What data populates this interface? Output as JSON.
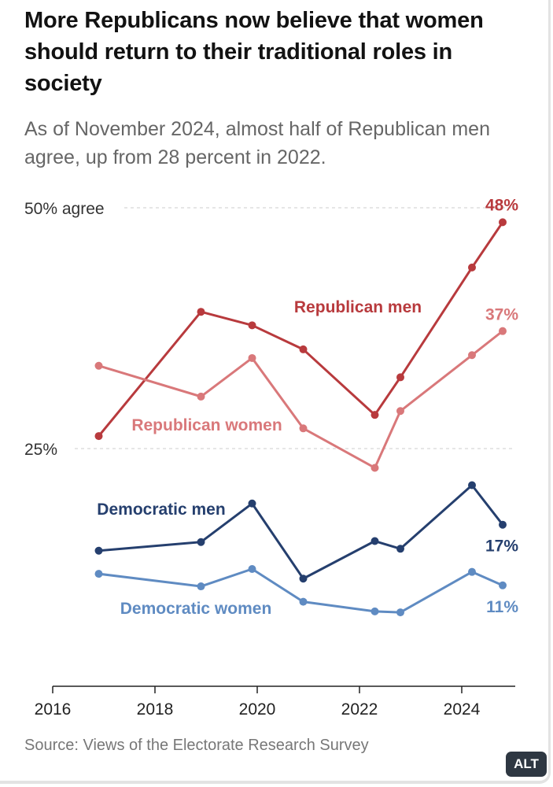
{
  "title": "More Republicans now believe that women should return to their traditional roles in society",
  "subtitle": "As of November 2024, almost half of Republican men agree, up from 28 percent in 2022.",
  "source": "Source: Views of the Electorate Research Survey",
  "alt_badge": "ALT",
  "chart_data": {
    "type": "line",
    "y_gridline_labels": [
      {
        "value": 50,
        "label": "50% agree"
      },
      {
        "value": 25,
        "label": "25%"
      }
    ],
    "x_ticks": [
      {
        "value": 2016,
        "label": "2016"
      },
      {
        "value": 2018,
        "label": "2018"
      },
      {
        "value": 2020,
        "label": "2020"
      },
      {
        "value": 2022,
        "label": "2022"
      },
      {
        "value": 2024,
        "label": "2024"
      }
    ],
    "xlim": [
      2016,
      2025.3
    ],
    "ylim": [
      0,
      50
    ],
    "grid": true,
    "series": [
      {
        "name": "Republican men",
        "color": "#b83a3d",
        "end_label": "48%",
        "points": [
          {
            "x": 2016.9,
            "y": 26.3
          },
          {
            "x": 2018.9,
            "y": 39.2
          },
          {
            "x": 2019.9,
            "y": 37.8
          },
          {
            "x": 2020.9,
            "y": 35.3
          },
          {
            "x": 2022.3,
            "y": 28.5
          },
          {
            "x": 2022.8,
            "y": 32.4
          },
          {
            "x": 2024.2,
            "y": 43.8
          },
          {
            "x": 2024.8,
            "y": 48.5
          }
        ]
      },
      {
        "name": "Republican women",
        "color": "#d9787a",
        "end_label": "37%",
        "points": [
          {
            "x": 2016.9,
            "y": 33.6
          },
          {
            "x": 2018.9,
            "y": 30.4
          },
          {
            "x": 2019.9,
            "y": 34.4
          },
          {
            "x": 2020.9,
            "y": 27.1
          },
          {
            "x": 2022.3,
            "y": 23.0
          },
          {
            "x": 2022.8,
            "y": 28.9
          },
          {
            "x": 2024.2,
            "y": 34.7
          },
          {
            "x": 2024.8,
            "y": 37.2
          }
        ]
      },
      {
        "name": "Democratic men",
        "color": "#253f6e",
        "end_label": "17%",
        "points": [
          {
            "x": 2016.9,
            "y": 14.4
          },
          {
            "x": 2018.9,
            "y": 15.3
          },
          {
            "x": 2019.9,
            "y": 19.3
          },
          {
            "x": 2020.9,
            "y": 11.5
          },
          {
            "x": 2022.3,
            "y": 15.4
          },
          {
            "x": 2022.8,
            "y": 14.6
          },
          {
            "x": 2024.2,
            "y": 21.2
          },
          {
            "x": 2024.8,
            "y": 17.1
          }
        ]
      },
      {
        "name": "Democratic women",
        "color": "#5f8bc2",
        "end_label": "11%",
        "points": [
          {
            "x": 2016.9,
            "y": 12.0
          },
          {
            "x": 2018.9,
            "y": 10.7
          },
          {
            "x": 2019.9,
            "y": 12.5
          },
          {
            "x": 2020.9,
            "y": 9.1
          },
          {
            "x": 2022.3,
            "y": 8.1
          },
          {
            "x": 2022.8,
            "y": 8.0
          },
          {
            "x": 2024.2,
            "y": 12.2
          },
          {
            "x": 2024.8,
            "y": 10.8
          }
        ]
      }
    ]
  }
}
